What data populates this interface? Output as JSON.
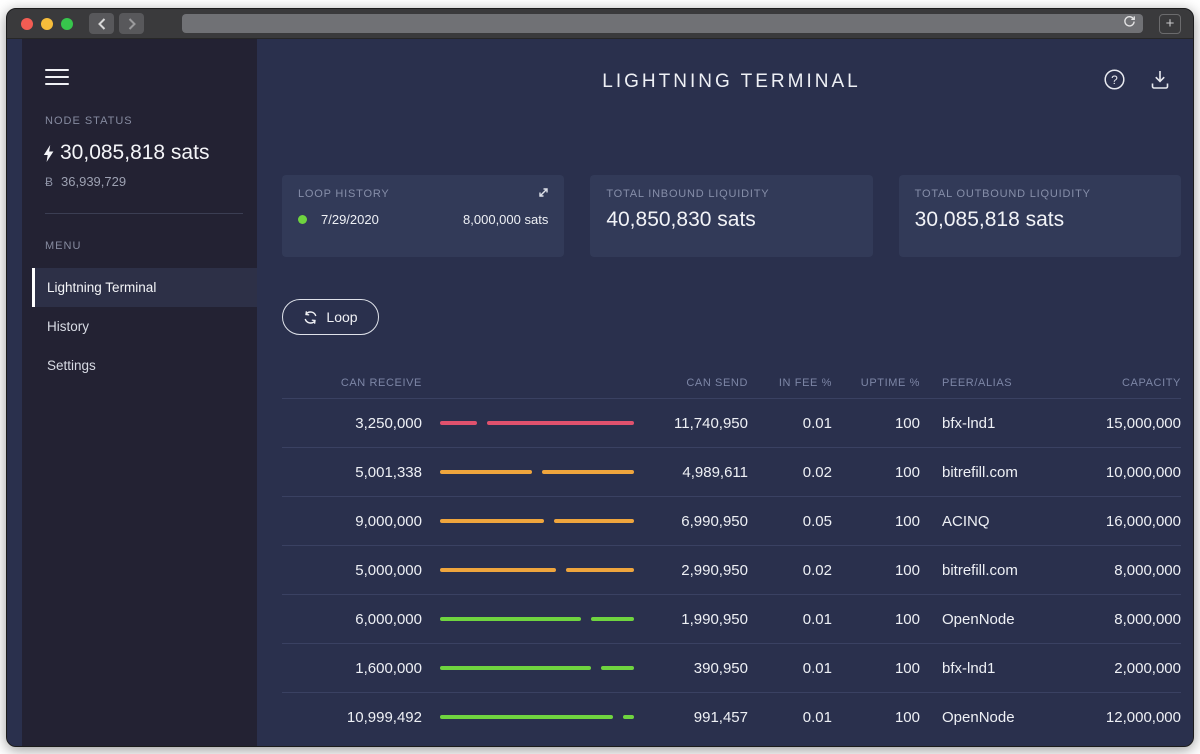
{
  "browser": {
    "new_tab_label": "+"
  },
  "icons": {
    "hamburger": "menu-icon",
    "bolt": "lightning-bolt-icon",
    "btc_symbol": "Ƀ",
    "help_glyph": "?",
    "expand": "expand-icon",
    "download": "download-icon",
    "refresh": "refresh-icon",
    "reload": "reload-icon"
  },
  "sidebar": {
    "node_status_label": "NODE STATUS",
    "balance_sats": "30,085,818 sats",
    "balance_btc": "36,939,729",
    "menu_label": "MENU",
    "items": [
      {
        "label": "Lightning Terminal",
        "active": true
      },
      {
        "label": "History",
        "active": false
      },
      {
        "label": "Settings",
        "active": false
      }
    ]
  },
  "header": {
    "title": "LIGHTNING TERMINAL"
  },
  "cards": {
    "loop_history": {
      "label": "LOOP HISTORY",
      "date": "7/29/2020",
      "amount": "8,000,000 sats",
      "status": "green"
    },
    "inbound": {
      "label": "TOTAL INBOUND LIQUIDITY",
      "value": "40,850,830 sats"
    },
    "outbound": {
      "label": "TOTAL OUTBOUND LIQUIDITY",
      "value": "30,085,818 sats"
    }
  },
  "actions": {
    "loop_label": "Loop"
  },
  "table": {
    "headers": [
      "CAN RECEIVE",
      "CAN SEND",
      "IN FEE %",
      "UPTIME %",
      "PEER/ALIAS",
      "CAPACITY"
    ],
    "rows": [
      {
        "status": "pink",
        "can_receive": "3,250,000",
        "can_send": "11,740,950",
        "in_fee": "0.01",
        "uptime": "100",
        "peer": "bfx-lnd1",
        "capacity": "15,000,000"
      },
      {
        "status": "orange",
        "can_receive": "5,001,338",
        "can_send": "4,989,611",
        "in_fee": "0.02",
        "uptime": "100",
        "peer": "bitrefill.com",
        "capacity": "10,000,000"
      },
      {
        "status": "orange",
        "can_receive": "9,000,000",
        "can_send": "6,990,950",
        "in_fee": "0.05",
        "uptime": "100",
        "peer": "ACINQ",
        "capacity": "16,000,000"
      },
      {
        "status": "orange",
        "can_receive": "5,000,000",
        "can_send": "2,990,950",
        "in_fee": "0.02",
        "uptime": "100",
        "peer": "bitrefill.com",
        "capacity": "8,000,000"
      },
      {
        "status": "green",
        "can_receive": "6,000,000",
        "can_send": "1,990,950",
        "in_fee": "0.01",
        "uptime": "100",
        "peer": "OpenNode",
        "capacity": "8,000,000"
      },
      {
        "status": "green",
        "can_receive": "1,600,000",
        "can_send": "390,950",
        "in_fee": "0.01",
        "uptime": "100",
        "peer": "bfx-lnd1",
        "capacity": "2,000,000"
      },
      {
        "status": "green",
        "can_receive": "10,999,492",
        "can_send": "991,457",
        "in_fee": "0.01",
        "uptime": "100",
        "peer": "OpenNode",
        "capacity": "12,000,000"
      }
    ]
  },
  "colors": {
    "pink": "#e0516d",
    "orange": "#efa53d",
    "green": "#6fd43f"
  }
}
